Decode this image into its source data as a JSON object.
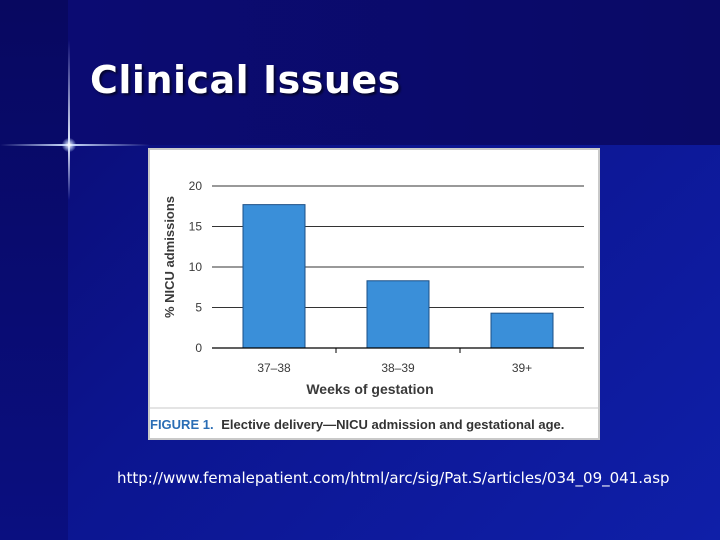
{
  "slide": {
    "title": "Clinical Issues",
    "url": "http://www.femalepatient.com/html/arc/sig/Pat.S/articles/034_09_041.asp"
  },
  "figure": {
    "caption_label": "FIGURE 1.",
    "caption_text": "Elective delivery—NICU admission and gestational age."
  },
  "chart_data": {
    "type": "bar",
    "categories": [
      "37–38",
      "38–39",
      "39+"
    ],
    "values": [
      17.7,
      8.3,
      4.3
    ],
    "xlabel": "Weeks of gestation",
    "ylabel": "% NICU admissions",
    "ylim": [
      0,
      20
    ],
    "yticks": [
      0,
      5,
      10,
      15,
      20
    ],
    "grid": true,
    "bar_color": "#3a8fd9"
  },
  "colors": {
    "caption_label": "#2a6db5",
    "axis_text": "#3a3a3a"
  }
}
